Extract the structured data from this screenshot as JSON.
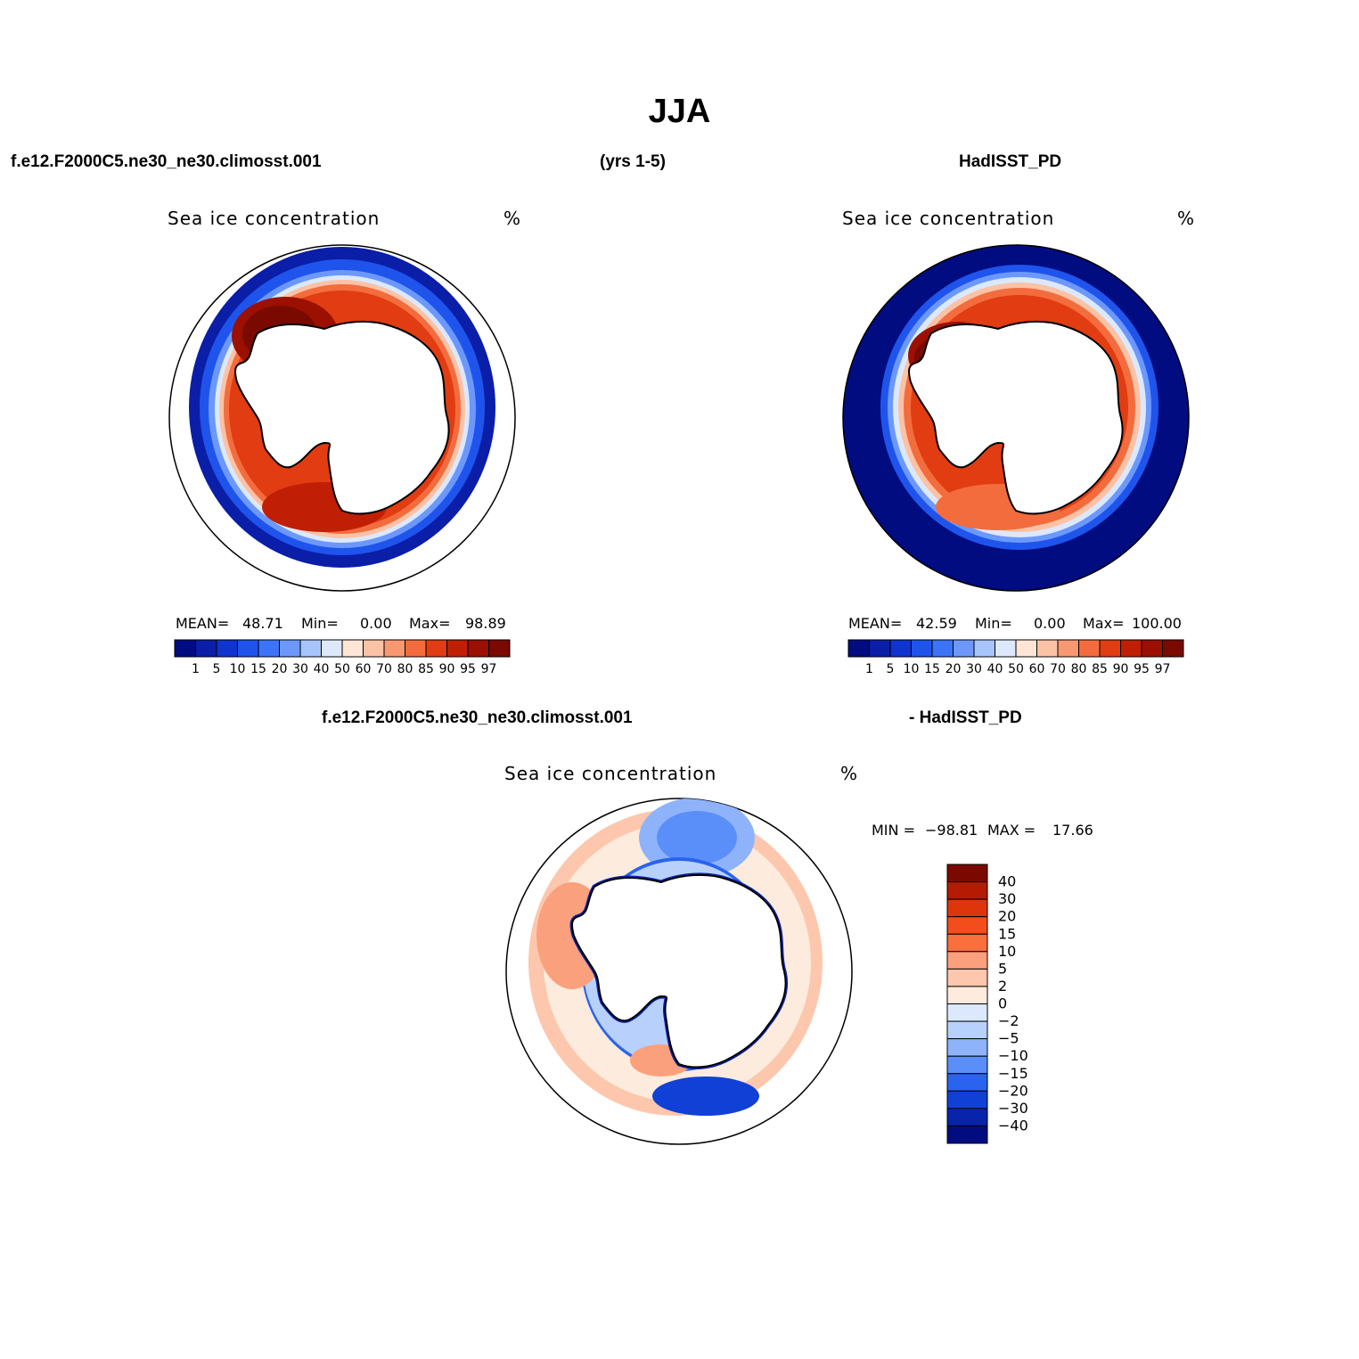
{
  "title": "JJA",
  "header": {
    "case_name": "f.e12.F2000C5.ne30_ne30.climosst.001",
    "years": "(yrs 1-5)",
    "obs_name": "HadISST_PD"
  },
  "diff_header": {
    "case_name": "f.e12.F2000C5.ne30_ne30.climosst.001",
    "obs_name": "- HadISST_PD"
  },
  "panels": [
    {
      "variable": "Sea ice concentration",
      "units": "%",
      "mean_label": "MEAN=",
      "mean": "48.71",
      "min_label": "Min=",
      "min": "0.00",
      "max_label": "Max=",
      "max": "98.89"
    },
    {
      "variable": "Sea ice concentration",
      "units": "%",
      "mean_label": "MEAN=",
      "mean": "42.59",
      "min_label": "Min=",
      "min": "0.00",
      "max_label": "Max=",
      "max": "100.00"
    }
  ],
  "diff_panel": {
    "variable": "Sea ice concentration",
    "units": "%",
    "min_label": "MIN =",
    "min": "−98.81",
    "max_label": "MAX =",
    "max": "17.66"
  },
  "colorbar_abs": {
    "labels": [
      "1",
      "5",
      "10",
      "15",
      "20",
      "30",
      "40",
      "50",
      "60",
      "70",
      "80",
      "85",
      "90",
      "95",
      "97"
    ],
    "colors": [
      "#000c80",
      "#0a1ea8",
      "#0f34d0",
      "#1f54ec",
      "#3c74f8",
      "#6c98fc",
      "#a8c4fc",
      "#dce9fd",
      "#fde6d5",
      "#fbc2a6",
      "#f79870",
      "#f36c3d",
      "#e13c12",
      "#c01f05",
      "#9b1001",
      "#7a0a00"
    ]
  },
  "colorbar_diff": {
    "labels": [
      "40",
      "30",
      "20",
      "15",
      "10",
      "5",
      "2",
      "0",
      "−2",
      "−5",
      "−10",
      "−15",
      "−20",
      "−30",
      "−40"
    ],
    "colors": [
      "#7a0a00",
      "#b51a02",
      "#de350b",
      "#f24d1a",
      "#f9703d",
      "#fba07c",
      "#fdc7ad",
      "#fdebdd",
      "#dce9fd",
      "#b8d1fc",
      "#8fb3fb",
      "#5a8ef8",
      "#2a63ee",
      "#1040d6",
      "#0824aa",
      "#000c80"
    ]
  },
  "map_colors": {
    "land": "#ffffff",
    "coast": "#000000",
    "open_ocean": "#000c80"
  }
}
